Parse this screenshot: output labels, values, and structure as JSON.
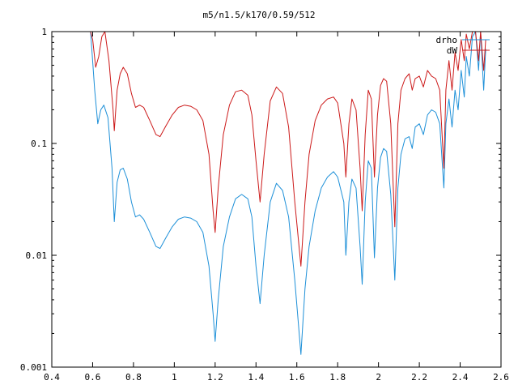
{
  "chart_data": {
    "type": "line",
    "title": "m5/n1.5/k170/0.59/512",
    "xlabel": "",
    "ylabel": "",
    "xlim": [
      0.4,
      2.6
    ],
    "ylim": [
      0.001,
      1
    ],
    "yscale": "log",
    "grid": false,
    "legend_position": "top-right",
    "x_ticks": [
      0.4,
      0.6,
      0.8,
      1,
      1.2,
      1.4,
      1.6,
      1.8,
      2,
      2.2,
      2.4,
      2.6
    ],
    "x_tick_labels": [
      "0.4",
      "0.6",
      "0.8",
      "1",
      "1.2",
      "1.4",
      "1.6",
      "1.8",
      "2",
      "2.2",
      "2.4",
      "2.6"
    ],
    "y_ticks": [
      0.001,
      0.01,
      0.1,
      1
    ],
    "y_tick_labels": [
      "0.001",
      "0.01",
      "0.1",
      "1"
    ],
    "series": [
      {
        "name": "drho",
        "color": "#1e90d8",
        "points": [
          [
            0.59,
            1.0
          ],
          [
            0.61,
            0.3
          ],
          [
            0.625,
            0.15
          ],
          [
            0.64,
            0.2
          ],
          [
            0.655,
            0.22
          ],
          [
            0.675,
            0.17
          ],
          [
            0.695,
            0.06
          ],
          [
            0.706,
            0.02
          ],
          [
            0.72,
            0.045
          ],
          [
            0.735,
            0.058
          ],
          [
            0.75,
            0.06
          ],
          [
            0.77,
            0.048
          ],
          [
            0.79,
            0.03
          ],
          [
            0.81,
            0.022
          ],
          [
            0.83,
            0.023
          ],
          [
            0.85,
            0.021
          ],
          [
            0.88,
            0.016
          ],
          [
            0.91,
            0.012
          ],
          [
            0.93,
            0.0115
          ],
          [
            0.96,
            0.0145
          ],
          [
            0.99,
            0.018
          ],
          [
            1.02,
            0.021
          ],
          [
            1.05,
            0.022
          ],
          [
            1.08,
            0.0215
          ],
          [
            1.11,
            0.02
          ],
          [
            1.14,
            0.016
          ],
          [
            1.17,
            0.008
          ],
          [
            1.19,
            0.003
          ],
          [
            1.2,
            0.0017
          ],
          [
            1.215,
            0.004
          ],
          [
            1.24,
            0.012
          ],
          [
            1.27,
            0.022
          ],
          [
            1.3,
            0.032
          ],
          [
            1.33,
            0.035
          ],
          [
            1.36,
            0.032
          ],
          [
            1.38,
            0.022
          ],
          [
            1.4,
            0.008
          ],
          [
            1.42,
            0.0037
          ],
          [
            1.44,
            0.01
          ],
          [
            1.47,
            0.03
          ],
          [
            1.5,
            0.044
          ],
          [
            1.53,
            0.038
          ],
          [
            1.56,
            0.022
          ],
          [
            1.59,
            0.006
          ],
          [
            1.62,
            0.0013
          ],
          [
            1.64,
            0.005
          ],
          [
            1.66,
            0.012
          ],
          [
            1.69,
            0.025
          ],
          [
            1.72,
            0.04
          ],
          [
            1.75,
            0.05
          ],
          [
            1.78,
            0.056
          ],
          [
            1.8,
            0.05
          ],
          [
            1.83,
            0.03
          ],
          [
            1.84,
            0.01
          ],
          [
            1.855,
            0.03
          ],
          [
            1.87,
            0.048
          ],
          [
            1.89,
            0.04
          ],
          [
            1.91,
            0.012
          ],
          [
            1.92,
            0.0055
          ],
          [
            1.935,
            0.03
          ],
          [
            1.95,
            0.07
          ],
          [
            1.965,
            0.06
          ],
          [
            1.98,
            0.0095
          ],
          [
            1.995,
            0.04
          ],
          [
            2.01,
            0.075
          ],
          [
            2.025,
            0.09
          ],
          [
            2.04,
            0.085
          ],
          [
            2.06,
            0.035
          ],
          [
            2.08,
            0.006
          ],
          [
            2.095,
            0.04
          ],
          [
            2.11,
            0.08
          ],
          [
            2.13,
            0.11
          ],
          [
            2.15,
            0.115
          ],
          [
            2.165,
            0.09
          ],
          [
            2.18,
            0.14
          ],
          [
            2.2,
            0.15
          ],
          [
            2.22,
            0.12
          ],
          [
            2.24,
            0.18
          ],
          [
            2.26,
            0.2
          ],
          [
            2.28,
            0.19
          ],
          [
            2.3,
            0.15
          ],
          [
            2.32,
            0.04
          ],
          [
            2.33,
            0.15
          ],
          [
            2.345,
            0.25
          ],
          [
            2.36,
            0.14
          ],
          [
            2.375,
            0.3
          ],
          [
            2.39,
            0.2
          ],
          [
            2.405,
            0.45
          ],
          [
            2.42,
            0.26
          ],
          [
            2.43,
            0.6
          ],
          [
            2.445,
            0.4
          ],
          [
            2.46,
            0.9
          ],
          [
            2.475,
            1.0
          ],
          [
            2.49,
            0.45
          ],
          [
            2.5,
            1.0
          ],
          [
            2.515,
            0.3
          ],
          [
            2.525,
            0.7
          ]
        ]
      },
      {
        "name": "dW",
        "color": "#cc1a1a",
        "points": [
          [
            0.59,
            1.0
          ],
          [
            0.6,
            0.85
          ],
          [
            0.615,
            0.48
          ],
          [
            0.63,
            0.6
          ],
          [
            0.645,
            0.9
          ],
          [
            0.66,
            1.0
          ],
          [
            0.68,
            0.55
          ],
          [
            0.7,
            0.2
          ],
          [
            0.706,
            0.13
          ],
          [
            0.72,
            0.3
          ],
          [
            0.735,
            0.42
          ],
          [
            0.75,
            0.48
          ],
          [
            0.77,
            0.42
          ],
          [
            0.79,
            0.28
          ],
          [
            0.81,
            0.21
          ],
          [
            0.83,
            0.22
          ],
          [
            0.85,
            0.21
          ],
          [
            0.88,
            0.16
          ],
          [
            0.91,
            0.12
          ],
          [
            0.93,
            0.115
          ],
          [
            0.96,
            0.145
          ],
          [
            0.99,
            0.18
          ],
          [
            1.02,
            0.21
          ],
          [
            1.05,
            0.22
          ],
          [
            1.08,
            0.215
          ],
          [
            1.11,
            0.2
          ],
          [
            1.14,
            0.16
          ],
          [
            1.17,
            0.08
          ],
          [
            1.19,
            0.025
          ],
          [
            1.2,
            0.016
          ],
          [
            1.215,
            0.04
          ],
          [
            1.24,
            0.12
          ],
          [
            1.27,
            0.22
          ],
          [
            1.3,
            0.29
          ],
          [
            1.33,
            0.3
          ],
          [
            1.36,
            0.27
          ],
          [
            1.38,
            0.18
          ],
          [
            1.4,
            0.07
          ],
          [
            1.42,
            0.03
          ],
          [
            1.44,
            0.08
          ],
          [
            1.47,
            0.24
          ],
          [
            1.5,
            0.32
          ],
          [
            1.53,
            0.28
          ],
          [
            1.56,
            0.14
          ],
          [
            1.59,
            0.03
          ],
          [
            1.62,
            0.008
          ],
          [
            1.64,
            0.03
          ],
          [
            1.66,
            0.08
          ],
          [
            1.69,
            0.16
          ],
          [
            1.72,
            0.22
          ],
          [
            1.75,
            0.25
          ],
          [
            1.78,
            0.26
          ],
          [
            1.8,
            0.23
          ],
          [
            1.83,
            0.1
          ],
          [
            1.84,
            0.05
          ],
          [
            1.855,
            0.15
          ],
          [
            1.87,
            0.25
          ],
          [
            1.89,
            0.2
          ],
          [
            1.91,
            0.06
          ],
          [
            1.92,
            0.025
          ],
          [
            1.935,
            0.12
          ],
          [
            1.95,
            0.3
          ],
          [
            1.965,
            0.25
          ],
          [
            1.98,
            0.05
          ],
          [
            1.995,
            0.18
          ],
          [
            2.01,
            0.33
          ],
          [
            2.025,
            0.38
          ],
          [
            2.04,
            0.36
          ],
          [
            2.06,
            0.15
          ],
          [
            2.08,
            0.018
          ],
          [
            2.095,
            0.15
          ],
          [
            2.11,
            0.3
          ],
          [
            2.13,
            0.38
          ],
          [
            2.15,
            0.42
          ],
          [
            2.165,
            0.3
          ],
          [
            2.18,
            0.38
          ],
          [
            2.2,
            0.4
          ],
          [
            2.22,
            0.32
          ],
          [
            2.24,
            0.45
          ],
          [
            2.26,
            0.4
          ],
          [
            2.28,
            0.38
          ],
          [
            2.3,
            0.3
          ],
          [
            2.32,
            0.06
          ],
          [
            2.33,
            0.3
          ],
          [
            2.345,
            0.55
          ],
          [
            2.36,
            0.3
          ],
          [
            2.375,
            0.65
          ],
          [
            2.39,
            0.45
          ],
          [
            2.405,
            0.85
          ],
          [
            2.42,
            0.55
          ],
          [
            2.43,
            0.95
          ],
          [
            2.445,
            0.7
          ],
          [
            2.46,
            1.0
          ],
          [
            2.475,
            1.0
          ],
          [
            2.49,
            0.55
          ],
          [
            2.5,
            1.0
          ],
          [
            2.515,
            0.45
          ],
          [
            2.525,
            0.85
          ]
        ]
      }
    ]
  }
}
